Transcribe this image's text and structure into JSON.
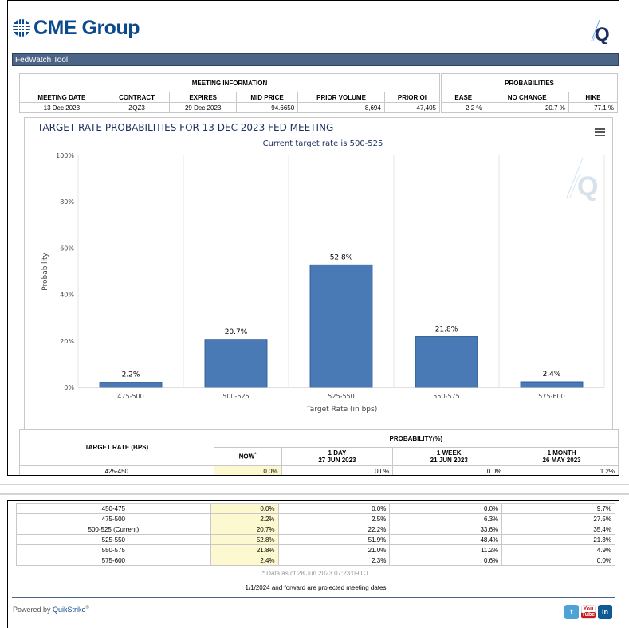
{
  "header": {
    "logo_text": "CME Group",
    "q_letter": "Q",
    "tool_title": "FedWatch Tool"
  },
  "meeting_info": {
    "section_title": "MEETING INFORMATION",
    "columns": [
      "MEETING DATE",
      "CONTRACT",
      "EXPIRES",
      "MID PRICE",
      "PRIOR VOLUME",
      "PRIOR OI"
    ],
    "values": [
      "13 Dec 2023",
      "ZQZ3",
      "29 Dec 2023",
      "94.6650",
      "8,694",
      "47,405"
    ]
  },
  "probabilities_summary": {
    "section_title": "PROBABILITIES",
    "columns": [
      "EASE",
      "NO CHANGE",
      "HIKE"
    ],
    "values": [
      "2.2 %",
      "20.7 %",
      "77.1 %"
    ]
  },
  "chart_data": {
    "type": "bar",
    "title": "TARGET RATE PROBABILITIES FOR 13 DEC 2023 FED MEETING",
    "subtitle": "Current target rate is 500-525",
    "categories": [
      "475-500",
      "500-525",
      "525-550",
      "550-575",
      "575-600"
    ],
    "values": [
      2.2,
      20.7,
      52.8,
      21.8,
      2.4
    ],
    "data_labels": [
      "2.2%",
      "20.7%",
      "52.8%",
      "21.8%",
      "2.4%"
    ],
    "xlabel": "Target Rate (in bps)",
    "ylabel": "Probability",
    "ylim": [
      0,
      100
    ],
    "yticks": [
      "0%",
      "20%",
      "40%",
      "60%",
      "80%",
      "100%"
    ],
    "bar_color": "#4a7ab5",
    "grid": "vertical",
    "watermark": "Q"
  },
  "probability_table": {
    "target_rate_header": "TARGET RATE (BPS)",
    "probability_header": "PROBABILITY(%)",
    "columns": [
      {
        "label": "NOW",
        "sub": "",
        "mark": "*"
      },
      {
        "label": "1 DAY",
        "sub": "27 JUN 2023"
      },
      {
        "label": "1 WEEK",
        "sub": "21 JUN 2023"
      },
      {
        "label": "1 MONTH",
        "sub": "26 MAY 2023"
      }
    ],
    "rows": [
      {
        "rate": "425-450",
        "now": "0.0%",
        "day": "0.0%",
        "week": "0.0%",
        "month": "1.2%"
      },
      {
        "rate": "450-475",
        "now": "0.0%",
        "day": "0.0%",
        "week": "0.0%",
        "month": "9.7%"
      },
      {
        "rate": "475-500",
        "now": "2.2%",
        "day": "2.5%",
        "week": "6.3%",
        "month": "27.5%"
      },
      {
        "rate": "500-525 (Current)",
        "now": "20.7%",
        "day": "22.2%",
        "week": "33.6%",
        "month": "35.4%"
      },
      {
        "rate": "525-550",
        "now": "52.8%",
        "day": "51.9%",
        "week": "48.4%",
        "month": "21.3%"
      },
      {
        "rate": "550-575",
        "now": "21.8%",
        "day": "21.0%",
        "week": "11.2%",
        "month": "4.9%"
      },
      {
        "rate": "575-600",
        "now": "2.4%",
        "day": "2.3%",
        "week": "0.6%",
        "month": "0.0%"
      }
    ],
    "data_asof": "* Data as of 28 Jun 2023 07:23:09 CT",
    "projected_note": "1/1/2024 and forward are projected meeting dates"
  },
  "footer": {
    "powered_by": "Powered by ",
    "quikstrike": "QuikStrike",
    "reg": "®",
    "social": {
      "twitter": "t",
      "youtube_top": "You",
      "youtube_bottom": "Tube",
      "linkedin": "in"
    }
  },
  "menu_icon": "hamburger-menu-icon"
}
